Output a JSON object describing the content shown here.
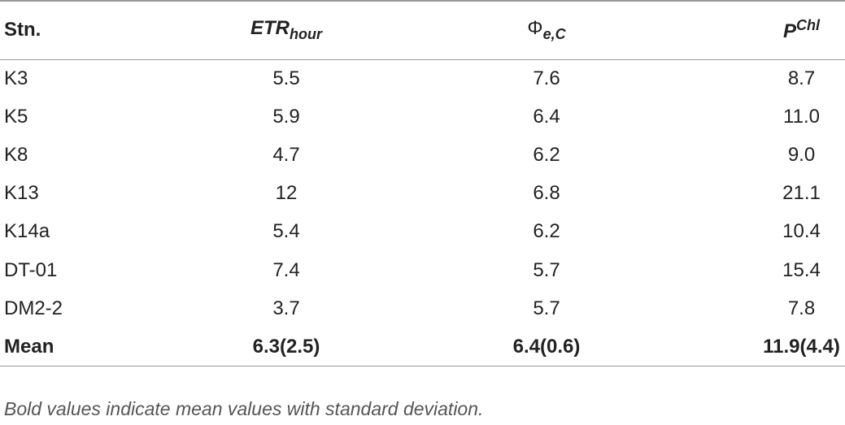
{
  "table": {
    "header": [
      {
        "base": "Stn."
      },
      {
        "base": "ETR",
        "sub": "hour"
      },
      {
        "base": "Φ",
        "sub": "e,C"
      },
      {
        "base": "P",
        "sup": "Chl"
      }
    ],
    "rows": [
      [
        "K3",
        "5.5",
        "7.6",
        "8.7"
      ],
      [
        "K5",
        "5.9",
        "6.4",
        "11.0"
      ],
      [
        "K8",
        "4.7",
        "6.2",
        "9.0"
      ],
      [
        "K13",
        "12",
        "6.8",
        "21.1"
      ],
      [
        "K14a",
        "5.4",
        "6.2",
        "10.4"
      ],
      [
        "DT-01",
        "7.4",
        "5.7",
        "15.4"
      ],
      [
        "DM2-2",
        "3.7",
        "5.7",
        "7.8"
      ]
    ],
    "mean_row": [
      "Mean",
      "6.3(2.5)",
      "6.4(0.6)",
      "11.9(4.4)"
    ],
    "footnote": "Bold values indicate mean values with standard deviation."
  }
}
